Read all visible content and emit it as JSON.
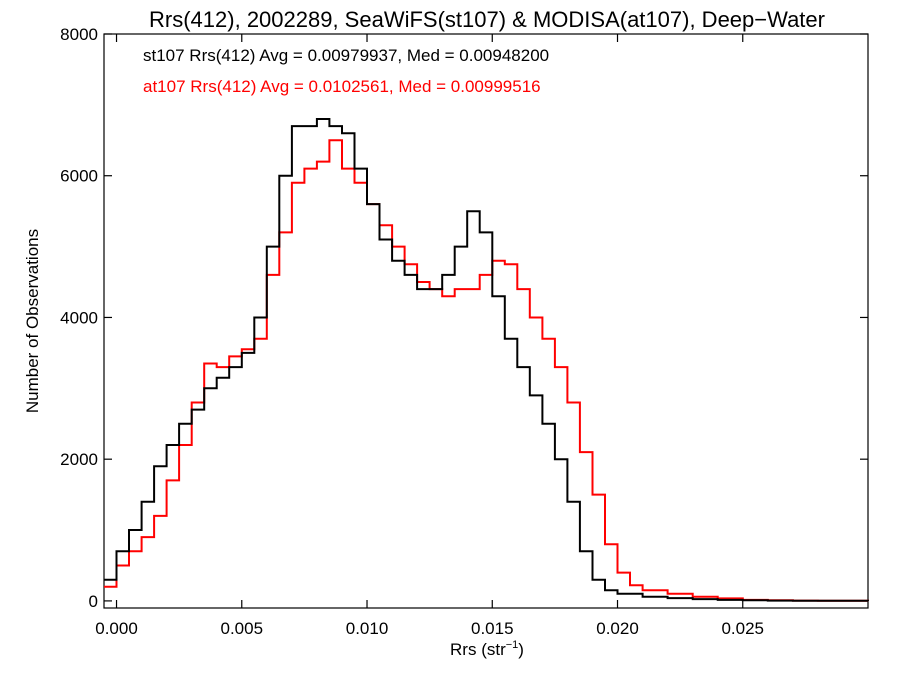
{
  "chart_data": {
    "type": "line",
    "title": "Rrs(412), 2002289, SeaWiFS(st107) & MODISA(at107), Deep−Water",
    "xlabel": "Rrs (str",
    "xlabel_sup": "−1",
    "xlabel_close": ")",
    "ylabel": "Number of Observations",
    "xlim": [
      -0.0005,
      0.03
    ],
    "ylim": [
      -100,
      8000
    ],
    "grid": false,
    "x_ticks": [
      {
        "value": 0.0,
        "label": "0.000"
      },
      {
        "value": 0.005,
        "label": "0.005"
      },
      {
        "value": 0.01,
        "label": "0.010"
      },
      {
        "value": 0.015,
        "label": "0.015"
      },
      {
        "value": 0.02,
        "label": "0.020"
      },
      {
        "value": 0.025,
        "label": "0.025"
      }
    ],
    "y_ticks": [
      {
        "value": 0,
        "label": "0"
      },
      {
        "value": 2000,
        "label": "2000"
      },
      {
        "value": 4000,
        "label": "4000"
      },
      {
        "value": 6000,
        "label": "6000"
      },
      {
        "value": 8000,
        "label": "8000"
      }
    ],
    "annotations": [
      {
        "text": "st107 Rrs(412) Avg = 0.00979937, Med = 0.00948200",
        "color": "#000000"
      },
      {
        "text": "at107 Rrs(412) Avg = 0.0102561, Med = 0.00999516",
        "color": "#ff0000"
      }
    ],
    "series": [
      {
        "color": "#000000",
        "points": [
          [
            -0.0005,
            300
          ],
          [
            0.0,
            700
          ],
          [
            0.0005,
            1000
          ],
          [
            0.001,
            1400
          ],
          [
            0.0015,
            1900
          ],
          [
            0.002,
            2200
          ],
          [
            0.0025,
            2500
          ],
          [
            0.003,
            2700
          ],
          [
            0.0035,
            3000
          ],
          [
            0.004,
            3150
          ],
          [
            0.0045,
            3300
          ],
          [
            0.005,
            3500
          ],
          [
            0.0055,
            4000
          ],
          [
            0.006,
            5000
          ],
          [
            0.0065,
            6000
          ],
          [
            0.007,
            6700
          ],
          [
            0.0075,
            6700
          ],
          [
            0.008,
            6800
          ],
          [
            0.0085,
            6700
          ],
          [
            0.009,
            6600
          ],
          [
            0.0095,
            6100
          ],
          [
            0.01,
            5600
          ],
          [
            0.0105,
            5100
          ],
          [
            0.011,
            4800
          ],
          [
            0.0115,
            4600
          ],
          [
            0.012,
            4400
          ],
          [
            0.0125,
            4400
          ],
          [
            0.013,
            4600
          ],
          [
            0.0135,
            5000
          ],
          [
            0.014,
            5500
          ],
          [
            0.0145,
            5200
          ],
          [
            0.015,
            4300
          ],
          [
            0.0155,
            3700
          ],
          [
            0.016,
            3300
          ],
          [
            0.0165,
            2900
          ],
          [
            0.017,
            2500
          ],
          [
            0.0175,
            2000
          ],
          [
            0.018,
            1400
          ],
          [
            0.0185,
            700
          ],
          [
            0.019,
            300
          ],
          [
            0.0195,
            150
          ],
          [
            0.02,
            100
          ],
          [
            0.021,
            60
          ],
          [
            0.022,
            40
          ],
          [
            0.023,
            25
          ],
          [
            0.024,
            15
          ],
          [
            0.025,
            10
          ],
          [
            0.026,
            5
          ],
          [
            0.027,
            3
          ],
          [
            0.028,
            2
          ],
          [
            0.029,
            1
          ],
          [
            0.03,
            0
          ]
        ]
      },
      {
        "color": "#ff0000",
        "points": [
          [
            -0.0005,
            200
          ],
          [
            0.0,
            500
          ],
          [
            0.0005,
            700
          ],
          [
            0.001,
            900
          ],
          [
            0.0015,
            1200
          ],
          [
            0.002,
            1700
          ],
          [
            0.0025,
            2200
          ],
          [
            0.003,
            2800
          ],
          [
            0.0035,
            3350
          ],
          [
            0.004,
            3300
          ],
          [
            0.0045,
            3450
          ],
          [
            0.005,
            3550
          ],
          [
            0.0055,
            3700
          ],
          [
            0.006,
            4600
          ],
          [
            0.0065,
            5200
          ],
          [
            0.007,
            5900
          ],
          [
            0.0075,
            6100
          ],
          [
            0.008,
            6200
          ],
          [
            0.0085,
            6500
          ],
          [
            0.009,
            6100
          ],
          [
            0.0095,
            5900
          ],
          [
            0.01,
            5600
          ],
          [
            0.0105,
            5300
          ],
          [
            0.011,
            5000
          ],
          [
            0.0115,
            4750
          ],
          [
            0.012,
            4500
          ],
          [
            0.0125,
            4400
          ],
          [
            0.013,
            4300
          ],
          [
            0.0135,
            4400
          ],
          [
            0.014,
            4400
          ],
          [
            0.0145,
            4600
          ],
          [
            0.015,
            4800
          ],
          [
            0.0155,
            4750
          ],
          [
            0.016,
            4400
          ],
          [
            0.0165,
            4000
          ],
          [
            0.017,
            3700
          ],
          [
            0.0175,
            3300
          ],
          [
            0.018,
            2800
          ],
          [
            0.0185,
            2100
          ],
          [
            0.019,
            1500
          ],
          [
            0.0195,
            800
          ],
          [
            0.02,
            400
          ],
          [
            0.0205,
            220
          ],
          [
            0.021,
            150
          ],
          [
            0.022,
            100
          ],
          [
            0.023,
            60
          ],
          [
            0.024,
            35
          ],
          [
            0.025,
            15
          ],
          [
            0.026,
            8
          ],
          [
            0.027,
            4
          ],
          [
            0.028,
            2
          ],
          [
            0.029,
            1
          ],
          [
            0.03,
            0
          ]
        ]
      }
    ]
  }
}
